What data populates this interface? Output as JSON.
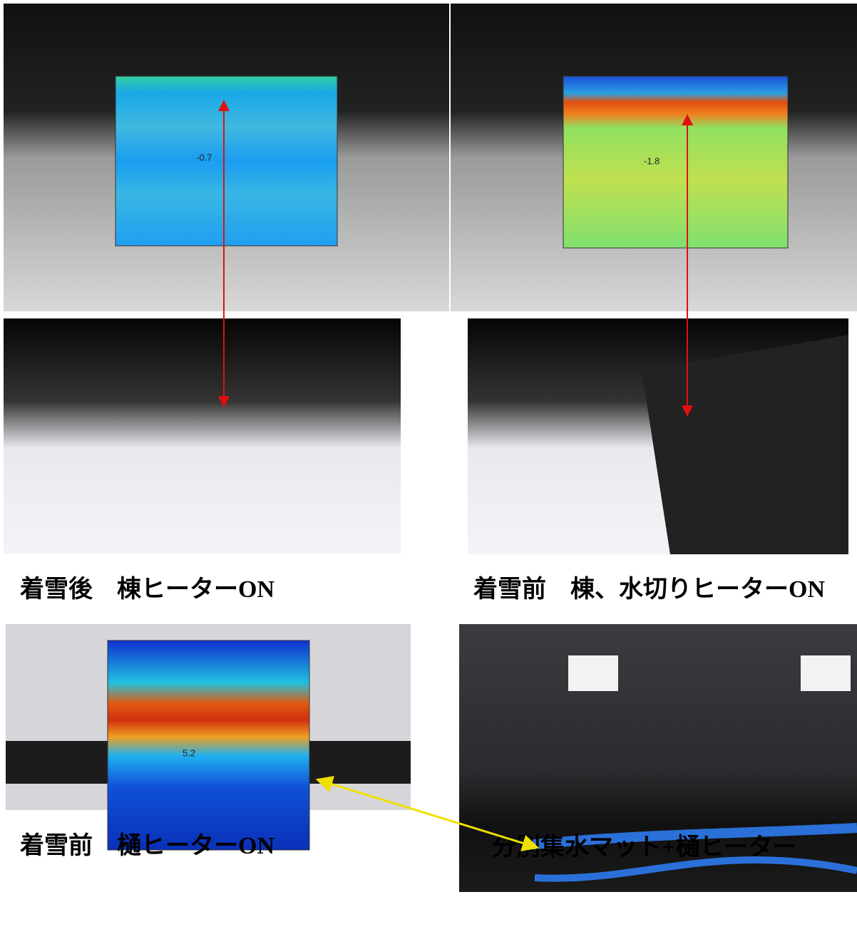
{
  "panels": [
    {
      "caption": "着雪後　棟ヒーターON",
      "thermal_label": "-0.7"
    },
    {
      "caption": "着雪前　棟、水切りヒーターON",
      "thermal_label": "-1.8"
    },
    {
      "caption": "着雪前　樋ヒーターON",
      "thermal_label": "5.2"
    },
    {
      "caption": "分別集水マット+樋ヒーター"
    }
  ]
}
